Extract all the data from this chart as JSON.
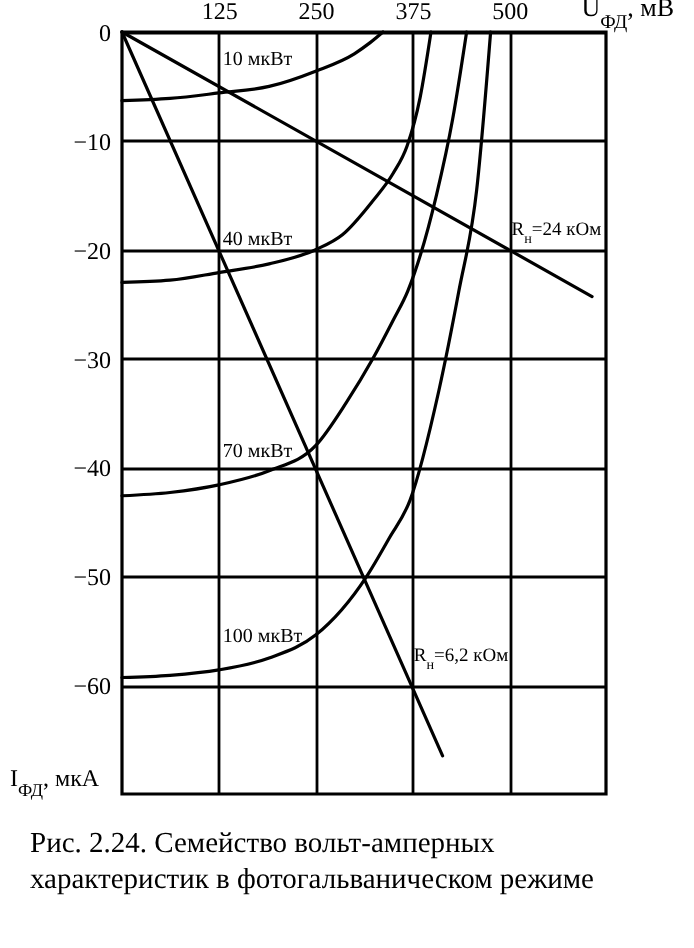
{
  "chart_data": {
    "type": "line",
    "title": "Рис. 2.24. Семейство вольт-амперных характеристик в фотогальваническом режиме",
    "xlabel": "U$_{ФД}$, мВ",
    "ylabel": "I$_{ФД}$, мкА",
    "xlim": [
      0,
      625
    ],
    "ylim": [
      -70,
      0
    ],
    "xticks": [
      125,
      250,
      375,
      500
    ],
    "yticks": [
      0,
      -10,
      -20,
      -30,
      -40,
      -50,
      -60
    ],
    "grid": true,
    "series": [
      {
        "name": "10 мкВт",
        "color": "#000000",
        "x": [
          0,
          62,
          125,
          190,
          250,
          300,
          320,
          337
        ],
        "values": [
          -6.3,
          -6.1,
          -5.6,
          -5,
          -3.6,
          -2,
          -1,
          0
        ]
      },
      {
        "name": "40 мкВт",
        "color": "#000000",
        "x": [
          0,
          62,
          125,
          190,
          250,
          285,
          324,
          350,
          368,
          385,
          399
        ],
        "values": [
          -23,
          -22.8,
          -22.1,
          -21.3,
          -20,
          -18.6,
          -15.5,
          -13,
          -10.5,
          -6,
          0
        ]
      },
      {
        "name": "70 мкВт",
        "color": "#000000",
        "x": [
          0,
          62,
          125,
          190,
          250,
          290,
          324,
          350,
          369,
          406,
          427,
          445
        ],
        "values": [
          -42.6,
          -42.3,
          -41.6,
          -40.3,
          -38,
          -34,
          -30,
          -26.5,
          -23.8,
          -15,
          -8,
          0
        ]
      },
      {
        "name": "100 мкВт",
        "color": "#000000",
        "x": [
          0,
          62,
          125,
          190,
          250,
          316,
          345,
          372,
          409,
          435,
          458,
          476
        ],
        "values": [
          -59.3,
          -59.1,
          -58.6,
          -57.5,
          -55.4,
          -50,
          -46.5,
          -43,
          -33,
          -23.8,
          -14.5,
          0
        ]
      },
      {
        "name": "R$_{н}$=24 кОм",
        "color": "#000000",
        "x": [
          0,
          607
        ],
        "values": [
          0,
          -24.3
        ]
      },
      {
        "name": "R$_{н}$=6,2 кОм",
        "color": "#000000",
        "x": [
          0,
          414
        ],
        "values": [
          0,
          -66.5
        ]
      }
    ]
  }
}
